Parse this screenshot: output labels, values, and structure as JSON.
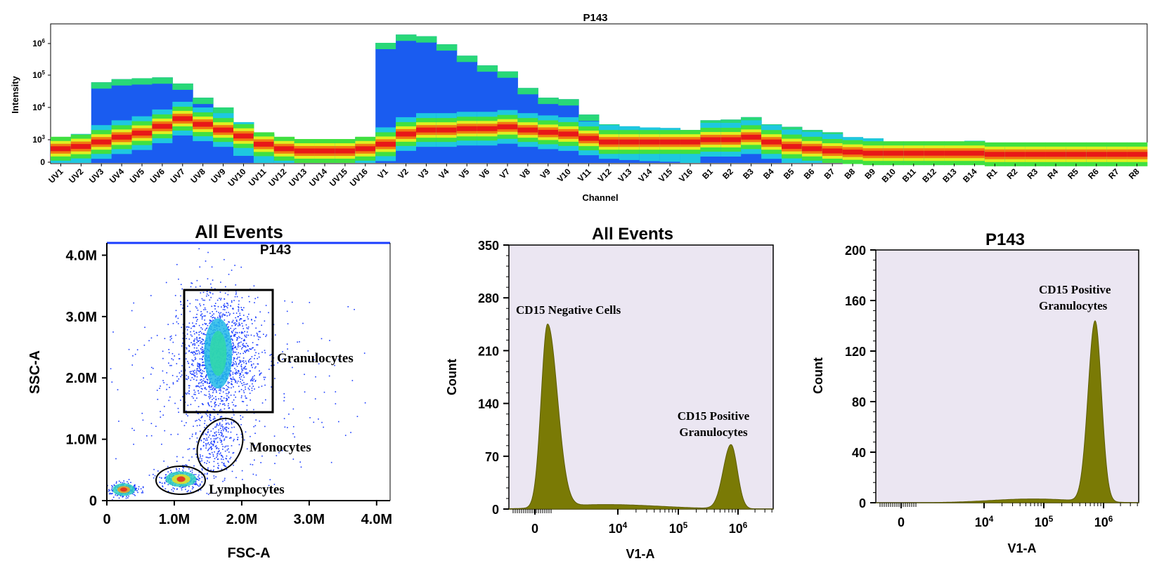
{
  "chart_data": [
    {
      "type": "heatmap",
      "title": "P143",
      "xlabel": "Channel",
      "ylabel": "Intensity",
      "y_scale": "log",
      "y_ticks": [
        "0",
        "10^3",
        "10^4",
        "10^5",
        "10^6"
      ],
      "categories": [
        "UV1",
        "UV2",
        "UV3",
        "UV4",
        "UV5",
        "UV6",
        "UV7",
        "UV8",
        "UV9",
        "UV10",
        "UV11",
        "UV12",
        "UV13",
        "UV14",
        "UV15",
        "UV16",
        "V1",
        "V2",
        "V3",
        "V4",
        "V5",
        "V6",
        "V7",
        "V8",
        "V9",
        "V10",
        "V11",
        "V12",
        "V13",
        "V14",
        "V15",
        "V16",
        "B1",
        "B2",
        "B3",
        "B4",
        "B5",
        "B6",
        "B7",
        "B8",
        "B9",
        "B10",
        "B11",
        "B12",
        "B13",
        "B14",
        "R1",
        "R2",
        "R3",
        "R4",
        "R5",
        "R6",
        "R7",
        "R8"
      ],
      "band_max_intensity": [
        1200,
        1500,
        60000,
        75000,
        80000,
        85000,
        55000,
        20000,
        10000,
        3500,
        1500,
        1000,
        900,
        1000,
        900,
        1200,
        1000000,
        1800000,
        1600000,
        900000,
        400000,
        200000,
        130000,
        40000,
        20000,
        18000,
        6000,
        3000,
        2600,
        2400,
        2300,
        2000,
        4000,
        4200,
        5000,
        3000,
        2500,
        2000,
        1700,
        1200,
        1100,
        900,
        850,
        800,
        800,
        950,
        600,
        650,
        700,
        700,
        650,
        550,
        750,
        750
      ],
      "core_intensity": [
        600,
        700,
        900,
        1200,
        1600,
        2600,
        4500,
        3000,
        2000,
        1300,
        800,
        600,
        500,
        500,
        500,
        600,
        800,
        1500,
        2000,
        2000,
        2200,
        2200,
        2500,
        2000,
        1700,
        1500,
        1100,
        900,
        900,
        900,
        900,
        900,
        1000,
        1000,
        1200,
        900,
        700,
        600,
        500,
        450,
        400,
        400,
        400,
        400,
        400,
        400,
        350,
        350,
        350,
        350,
        350,
        350,
        350,
        350
      ]
    },
    {
      "type": "scatter",
      "title": "All Events",
      "subtitle": "P143",
      "xlabel": "FSC-A",
      "ylabel": "SSC-A",
      "xlim": [
        0,
        4200000
      ],
      "ylim": [
        0,
        4200000
      ],
      "x_ticks": [
        "0",
        "1.0M",
        "2.0M",
        "3.0M",
        "4.0M"
      ],
      "y_ticks": [
        "0",
        "1.0M",
        "2.0M",
        "3.0M",
        "4.0M"
      ],
      "populations": [
        {
          "name": "Granulocytes",
          "center": [
            1650000,
            2400000
          ],
          "gate": "rectangle",
          "gate_range": {
            "x": [
              1100000,
              2450000
            ],
            "y": [
              1450000,
              3450000
            ]
          }
        },
        {
          "name": "Monocytes",
          "center": [
            1650000,
            950000
          ],
          "gate": "ellipse"
        },
        {
          "name": "Lymphocytes",
          "center": [
            1100000,
            350000
          ],
          "gate": "ellipse"
        },
        {
          "name": "",
          "center": [
            250000,
            180000
          ],
          "gate": "none"
        }
      ]
    },
    {
      "type": "area",
      "title": "All Events",
      "xlabel": "V1-A",
      "ylabel": "Count",
      "x_scale": "biexponential",
      "x_ticks": [
        "0",
        "10^4",
        "10^5",
        "10^6"
      ],
      "y_ticks": [
        0,
        70,
        140,
        210,
        280,
        350
      ],
      "ylim": [
        0,
        350
      ],
      "peaks": [
        {
          "label": "CD15 Negative Cells",
          "position": "just above 0",
          "count": 243
        },
        {
          "label": "CD15 Positive Granulocytes",
          "position": 700000,
          "count": 85
        }
      ]
    },
    {
      "type": "area",
      "title": "P143",
      "xlabel": "V1-A",
      "ylabel": "Count",
      "x_scale": "biexponential",
      "x_ticks": [
        "0",
        "10^4",
        "10^5",
        "10^6"
      ],
      "y_ticks": [
        0,
        40,
        80,
        120,
        160,
        200
      ],
      "ylim": [
        0,
        200
      ],
      "peaks": [
        {
          "label": "CD15 Positive Granulocytes",
          "position": 700000,
          "count": 143
        }
      ]
    }
  ],
  "colors": {
    "histogram_fill": "#7a7a05",
    "histogram_bg": "#ebe6f2",
    "scatter_dot": "#1a3dff"
  }
}
